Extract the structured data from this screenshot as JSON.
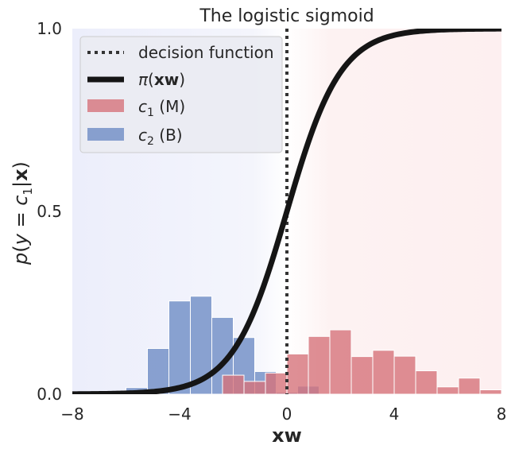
{
  "chart_data": {
    "type": "bar",
    "title": "The logistic sigmoid",
    "xlabel": "xw",
    "ylabel": "p(y = c1|x)",
    "xlim": [
      -8,
      8
    ],
    "ylim": [
      0,
      1.0
    ],
    "xticks": [
      -8,
      -4,
      0,
      4,
      8
    ],
    "xtick_labels": [
      "−8",
      "−4",
      "0",
      "4",
      "8"
    ],
    "yticks": [
      0,
      0.5,
      1.0
    ],
    "ytick_labels": [
      "0.0",
      "0.5",
      "1.0"
    ],
    "grid": false,
    "legend_position": "top-left",
    "legend": [
      {
        "key": "decision",
        "label": "decision function",
        "style": "dotted-line",
        "color": "#333333"
      },
      {
        "key": "sigmoid",
        "label": "π(xw)",
        "style": "thick-line",
        "color": "#151515"
      },
      {
        "key": "c1",
        "label": "c1 (M)",
        "style": "patch",
        "color": "#d6737b"
      },
      {
        "key": "c2",
        "label": "c2 (B)",
        "style": "patch",
        "color": "#6e8cc4"
      }
    ],
    "decision_boundary_x": 0,
    "colors": {
      "sigmoid": "#151515",
      "decision": "#333333",
      "c1": "#d6737b",
      "c2": "#6e8cc4",
      "region_c2": "#eef0fb",
      "region_c1": "#fdf1f1",
      "axes_bg": "#ffffff"
    },
    "bin_width": 0.8,
    "series": [
      {
        "name": "c2 (B)",
        "bin_edges": [
          -6.8,
          -6.0,
          -5.2,
          -4.4,
          -3.6,
          -2.8,
          -2.0,
          -1.2,
          -0.4,
          0.4,
          1.2
        ],
        "values": [
          0.0,
          0.018,
          0.125,
          0.255,
          0.268,
          0.21,
          0.155,
          0.062,
          0.005,
          0.022
        ]
      },
      {
        "name": "c1 (M)",
        "bin_edges": [
          -2.4,
          -1.6,
          -0.8,
          0.0,
          0.8,
          1.6,
          2.4,
          3.2,
          4.0,
          4.8,
          5.6,
          6.4,
          7.2,
          8.0
        ],
        "values": [
          0.052,
          0.035,
          0.058,
          0.11,
          0.158,
          0.176,
          0.103,
          0.12,
          0.104,
          0.064,
          0.02,
          0.044,
          0.012
        ]
      }
    ]
  }
}
